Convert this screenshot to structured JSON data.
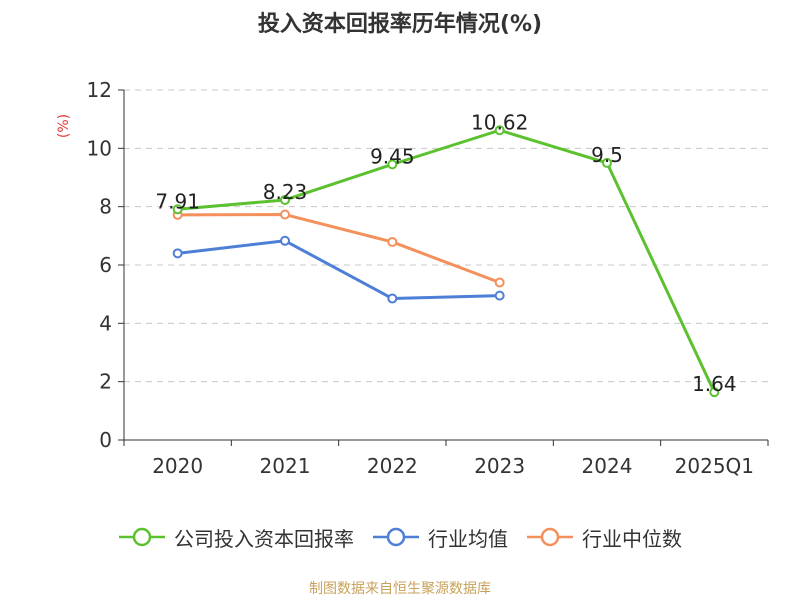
{
  "chart_data": {
    "type": "line",
    "title": "投入资本回报率历年情况(%)",
    "ylabel": "(%)",
    "categories": [
      "2020",
      "2021",
      "2022",
      "2023",
      "2024",
      "2025Q1"
    ],
    "ylim": [
      0,
      12
    ],
    "yticks": [
      0,
      2,
      4,
      6,
      8,
      10,
      12
    ],
    "grid": true,
    "legend_position": "bottom",
    "series": [
      {
        "name": "公司投入资本回报率",
        "color": "#5cc12f",
        "values": [
          7.91,
          8.23,
          9.45,
          10.62,
          9.5,
          1.64
        ],
        "labels": true
      },
      {
        "name": "行业均值",
        "color": "#4e7fd6",
        "values": [
          6.4,
          6.83,
          4.85,
          4.95,
          null,
          null
        ],
        "labels": false
      },
      {
        "name": "行业中位数",
        "color": "#f4905b",
        "values": [
          7.72,
          7.73,
          6.79,
          5.4,
          null,
          null
        ],
        "labels": false
      }
    ]
  },
  "source": "制图数据来自恒生聚源数据库"
}
